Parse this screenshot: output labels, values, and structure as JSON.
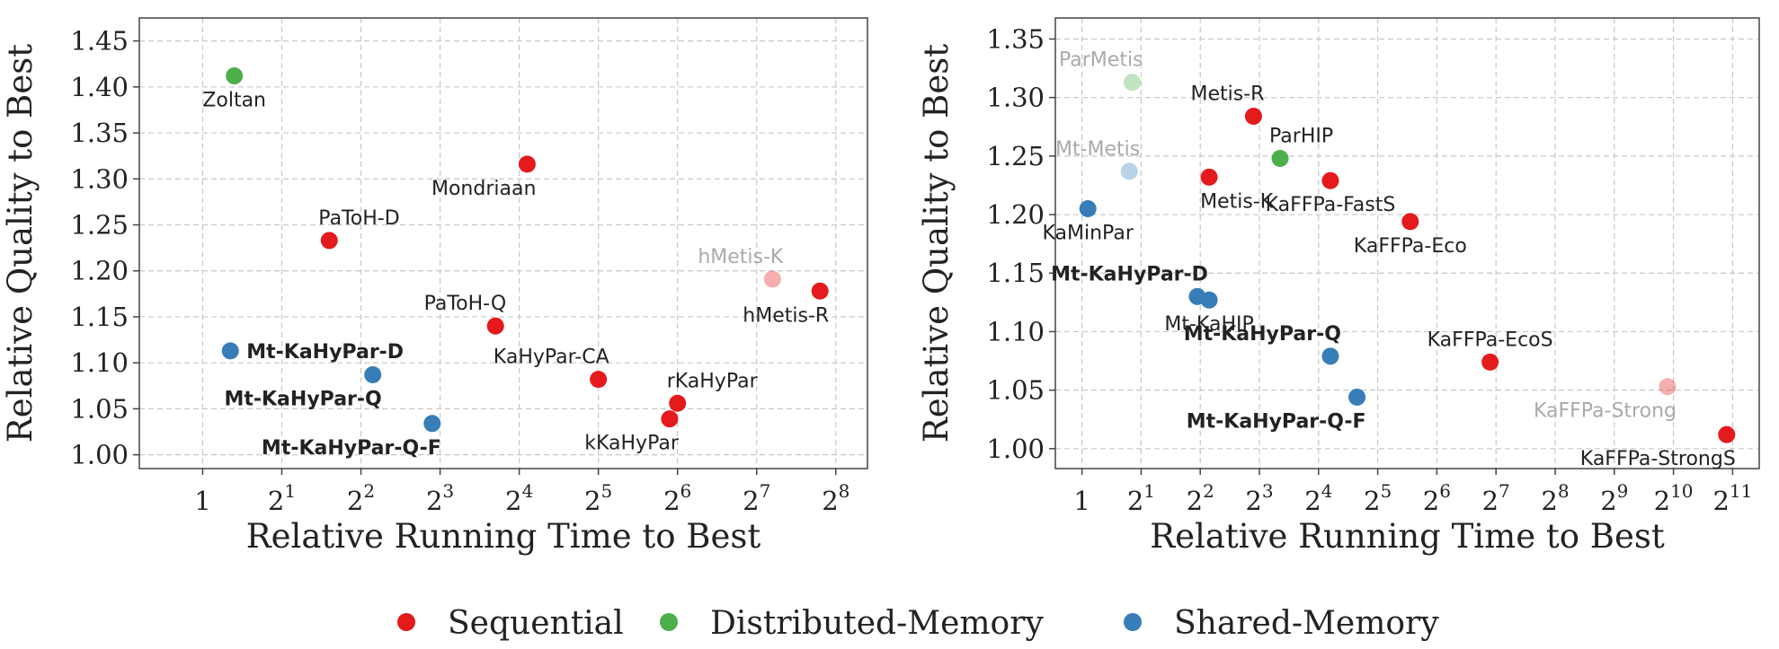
{
  "chart_data": [
    {
      "type": "scatter",
      "xlabel": "Relative Running Time to Best",
      "ylabel": "Relative Quality to Best",
      "xscale": "log2",
      "xticks": [
        {
          "v": 0,
          "base": "1",
          "exp": ""
        },
        {
          "v": 1,
          "base": "2",
          "exp": "1"
        },
        {
          "v": 2,
          "base": "2",
          "exp": "2"
        },
        {
          "v": 3,
          "base": "2",
          "exp": "3"
        },
        {
          "v": 4,
          "base": "2",
          "exp": "4"
        },
        {
          "v": 5,
          "base": "2",
          "exp": "5"
        },
        {
          "v": 6,
          "base": "2",
          "exp": "6"
        },
        {
          "v": 7,
          "base": "2",
          "exp": "7"
        },
        {
          "v": 8,
          "base": "2",
          "exp": "8"
        }
      ],
      "yticks": [
        "1.00",
        "1.05",
        "1.10",
        "1.15",
        "1.20",
        "1.25",
        "1.30",
        "1.35",
        "1.40",
        "1.45"
      ],
      "xlim": [
        -0.8,
        8.4
      ],
      "ylim": [
        0.985,
        1.475
      ],
      "grid": true,
      "points": [
        {
          "label": "Zoltan",
          "x": 0.4,
          "y": 1.412,
          "group": "distributed",
          "faded": false,
          "bold": false,
          "pos": "below"
        },
        {
          "label": "Mondriaan",
          "x": 4.1,
          "y": 1.316,
          "group": "sequential",
          "faded": false,
          "bold": false,
          "pos": "below-left"
        },
        {
          "label": "PaToH-D",
          "x": 1.6,
          "y": 1.233,
          "group": "sequential",
          "faded": false,
          "bold": false,
          "pos": "above-right"
        },
        {
          "label": "hMetis-K",
          "x": 7.2,
          "y": 1.191,
          "group": "sequential",
          "faded": true,
          "bold": false,
          "pos": "above-left"
        },
        {
          "label": "hMetis-R",
          "x": 7.8,
          "y": 1.178,
          "group": "sequential",
          "faded": false,
          "bold": false,
          "pos": "below-left"
        },
        {
          "label": "PaToH-Q",
          "x": 3.7,
          "y": 1.14,
          "group": "sequential",
          "faded": false,
          "bold": false,
          "pos": "above-left"
        },
        {
          "label": "Mt-KaHyPar-D",
          "x": 0.35,
          "y": 1.113,
          "group": "shared",
          "faded": false,
          "bold": true,
          "pos": "right"
        },
        {
          "label": "KaHyPar-CA",
          "x": 5.0,
          "y": 1.082,
          "group": "sequential",
          "faded": false,
          "bold": false,
          "pos": "above-left"
        },
        {
          "label": "Mt-KaHyPar-Q",
          "x": 2.15,
          "y": 1.087,
          "group": "shared",
          "faded": false,
          "bold": true,
          "pos": "below-left"
        },
        {
          "label": "rKaHyPar",
          "x": 6.0,
          "y": 1.056,
          "group": "sequential",
          "faded": false,
          "bold": false,
          "pos": "above-right"
        },
        {
          "label": "kKaHyPar",
          "x": 5.9,
          "y": 1.039,
          "group": "sequential",
          "faded": false,
          "bold": false,
          "pos": "below-left"
        },
        {
          "label": "Mt-KaHyPar-Q-F",
          "x": 2.9,
          "y": 1.034,
          "group": "shared",
          "faded": false,
          "bold": true,
          "pos": "below-left"
        }
      ]
    },
    {
      "type": "scatter",
      "xlabel": "Relative Running Time to Best",
      "ylabel": "Relative Quality to Best",
      "xscale": "log2",
      "xticks": [
        {
          "v": 0,
          "base": "1",
          "exp": ""
        },
        {
          "v": 1,
          "base": "2",
          "exp": "1"
        },
        {
          "v": 2,
          "base": "2",
          "exp": "2"
        },
        {
          "v": 3,
          "base": "2",
          "exp": "3"
        },
        {
          "v": 4,
          "base": "2",
          "exp": "4"
        },
        {
          "v": 5,
          "base": "2",
          "exp": "5"
        },
        {
          "v": 6,
          "base": "2",
          "exp": "6"
        },
        {
          "v": 7,
          "base": "2",
          "exp": "7"
        },
        {
          "v": 8,
          "base": "2",
          "exp": "8"
        },
        {
          "v": 9,
          "base": "2",
          "exp": "9"
        },
        {
          "v": 10,
          "base": "2",
          "exp": "10"
        },
        {
          "v": 11,
          "base": "2",
          "exp": "11"
        }
      ],
      "yticks": [
        "1.00",
        "1.05",
        "1.10",
        "1.15",
        "1.20",
        "1.25",
        "1.30",
        "1.35"
      ],
      "xlim": [
        -0.45,
        11.45
      ],
      "ylim": [
        0.983,
        1.368
      ],
      "grid": true,
      "points": [
        {
          "label": "ParMetis",
          "x": 0.85,
          "y": 1.313,
          "group": "distributed",
          "faded": true,
          "bold": false,
          "pos": "above-left"
        },
        {
          "label": "Metis-R",
          "x": 2.9,
          "y": 1.284,
          "group": "sequential",
          "faded": false,
          "bold": false,
          "pos": "above-left"
        },
        {
          "label": "ParHIP",
          "x": 3.35,
          "y": 1.248,
          "group": "distributed",
          "faded": false,
          "bold": false,
          "pos": "above-right"
        },
        {
          "label": "Mt-Metis",
          "x": 0.8,
          "y": 1.237,
          "group": "shared",
          "faded": true,
          "bold": false,
          "pos": "above-left"
        },
        {
          "label": "Metis-K",
          "x": 2.15,
          "y": 1.232,
          "group": "sequential",
          "faded": false,
          "bold": false,
          "pos": "below-right"
        },
        {
          "label": "KaFFPa-FastS",
          "x": 4.2,
          "y": 1.229,
          "group": "sequential",
          "faded": false,
          "bold": false,
          "pos": "below"
        },
        {
          "label": "KaMinPar",
          "x": 0.1,
          "y": 1.205,
          "group": "shared",
          "faded": false,
          "bold": false,
          "pos": "below"
        },
        {
          "label": "KaFFPa-Eco",
          "x": 5.55,
          "y": 1.194,
          "group": "sequential",
          "faded": false,
          "bold": false,
          "pos": "below"
        },
        {
          "label": "Mt-KaHyPar-D",
          "x": 1.95,
          "y": 1.13,
          "group": "shared",
          "faded": false,
          "bold": true,
          "pos": "above-left"
        },
        {
          "label": "Mt-KaHIP",
          "x": 2.15,
          "y": 1.127,
          "group": "shared",
          "faded": false,
          "bold": false,
          "pos": "below"
        },
        {
          "label": "Mt-KaHyPar-Q",
          "x": 4.2,
          "y": 1.079,
          "group": "shared",
          "faded": false,
          "bold": true,
          "pos": "above-left"
        },
        {
          "label": "KaFFPa-EcoS",
          "x": 6.9,
          "y": 1.074,
          "group": "sequential",
          "faded": false,
          "bold": false,
          "pos": "above"
        },
        {
          "label": "Mt-KaHyPar-Q-F",
          "x": 4.65,
          "y": 1.044,
          "group": "shared",
          "faded": false,
          "bold": true,
          "pos": "below-left"
        },
        {
          "label": "KaFFPa-Strong",
          "x": 9.9,
          "y": 1.053,
          "group": "sequential",
          "faded": true,
          "bold": false,
          "pos": "below-left"
        },
        {
          "label": "KaFFPa-StrongS",
          "x": 10.9,
          "y": 1.012,
          "group": "sequential",
          "faded": false,
          "bold": false,
          "pos": "below-left"
        }
      ]
    }
  ],
  "legend": {
    "placement": "bottom-center",
    "items": [
      {
        "key": "sequential",
        "label": "Sequential",
        "color": "#e41a1c"
      },
      {
        "key": "distributed",
        "label": "Distributed-Memory",
        "color": "#4daf4a"
      },
      {
        "key": "shared",
        "label": "Shared-Memory",
        "color": "#377eb8"
      }
    ]
  }
}
